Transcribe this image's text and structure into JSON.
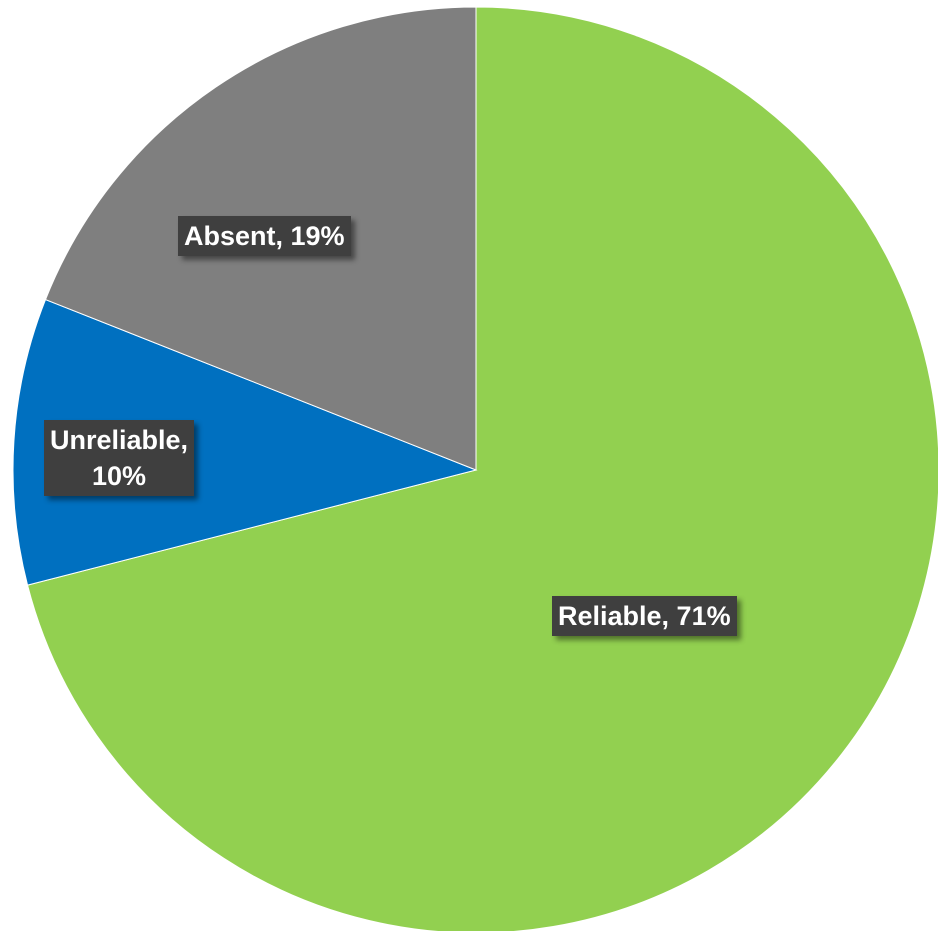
{
  "chart_data": {
    "type": "pie",
    "title": "",
    "start_angle_deg": 0,
    "direction": "clockwise",
    "slices": [
      {
        "label": "Reliable",
        "value": 71,
        "color": "#92d050",
        "data_label": "Reliable, 71%"
      },
      {
        "label": "Unreliable",
        "value": 10,
        "color": "#0070c0",
        "data_label_lines": [
          "Unreliable,",
          "10%"
        ]
      },
      {
        "label": "Absent",
        "value": 19,
        "color": "#7f7f7f",
        "data_label": "Absent, 19%"
      }
    ],
    "legend": "none"
  }
}
